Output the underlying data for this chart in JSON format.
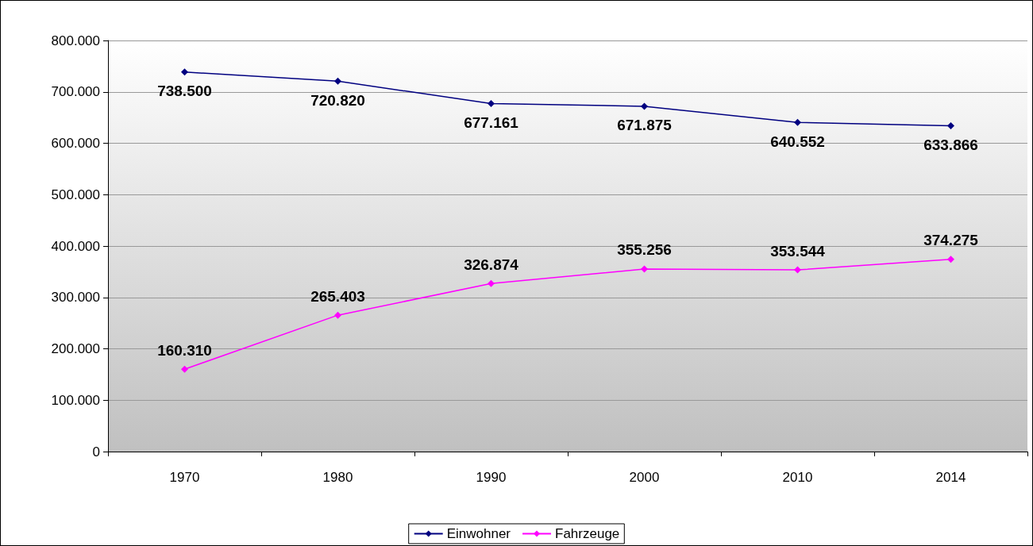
{
  "chart_data": {
    "type": "line",
    "categories": [
      "1970",
      "1980",
      "1990",
      "2000",
      "2010",
      "2014"
    ],
    "series": [
      {
        "name": "Einwohner",
        "color": "#000080",
        "values": [
          738500,
          720820,
          677161,
          671875,
          640552,
          633866
        ],
        "value_labels": [
          "738.500",
          "720.820",
          "677.161",
          "671.875",
          "640.552",
          "633.866"
        ]
      },
      {
        "name": "Fahrzeuge",
        "color": "#ff00ff",
        "values": [
          160310,
          265403,
          326874,
          355256,
          353544,
          374275
        ],
        "value_labels": [
          "160.310",
          "265.403",
          "326.874",
          "355.256",
          "353.544",
          "374.275"
        ]
      }
    ],
    "ylim": [
      0,
      800000
    ],
    "yticks": [
      {
        "value": 0,
        "label": "0"
      },
      {
        "value": 100000,
        "label": "100.000"
      },
      {
        "value": 200000,
        "label": "200.000"
      },
      {
        "value": 300000,
        "label": "300.000"
      },
      {
        "value": 400000,
        "label": "400.000"
      },
      {
        "value": 500000,
        "label": "500.000"
      },
      {
        "value": 600000,
        "label": "600.000"
      },
      {
        "value": 700000,
        "label": "700.000"
      },
      {
        "value": 800000,
        "label": "800.000"
      }
    ],
    "grid": "y",
    "legend": "bottom",
    "marker": "diamond",
    "line_style": "solid"
  }
}
